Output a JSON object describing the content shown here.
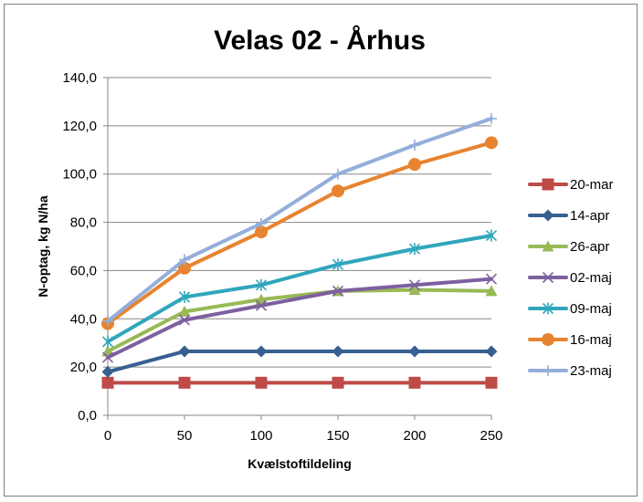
{
  "chart_data": {
    "type": "line",
    "title": "Velas 02 - Århus",
    "xlabel": "Kvælstoftildeling",
    "ylabel": "N-optag, kg N/ha",
    "x": [
      0,
      50,
      100,
      150,
      200,
      250
    ],
    "x_tick_labels": [
      "0",
      "50",
      "100",
      "150",
      "200",
      "250"
    ],
    "ylim": [
      0,
      140
    ],
    "y_ticks": [
      0,
      20,
      40,
      60,
      80,
      100,
      120,
      140
    ],
    "y_tick_labels": [
      "0,0",
      "20,0",
      "40,0",
      "60,0",
      "80,0",
      "100,0",
      "120,0",
      "140,0"
    ],
    "grid": "horizontal",
    "legend_position": "right",
    "series": [
      {
        "name": "20-mar",
        "values": [
          13.5,
          13.5,
          13.5,
          13.5,
          13.5,
          13.5
        ],
        "color": "#be4b48",
        "marker": "square"
      },
      {
        "name": "14-apr",
        "values": [
          18,
          26.5,
          26.5,
          26.5,
          26.5,
          26.5
        ],
        "color": "#376092",
        "marker": "diamond"
      },
      {
        "name": "26-apr",
        "values": [
          26.5,
          43,
          48,
          51.5,
          52,
          51.5
        ],
        "color": "#98b954",
        "marker": "triangle"
      },
      {
        "name": "02-maj",
        "values": [
          24,
          39.5,
          45.5,
          51.5,
          54,
          56.5
        ],
        "color": "#7d60a0",
        "marker": "x"
      },
      {
        "name": "09-maj",
        "values": [
          30.5,
          49,
          54,
          62.5,
          69,
          74.5
        ],
        "color": "#31a6bc",
        "marker": "asterisk"
      },
      {
        "name": "16-maj",
        "values": [
          38,
          61,
          76,
          93,
          104,
          113
        ],
        "color": "#e8832f",
        "marker": "circle"
      },
      {
        "name": "23-maj",
        "values": [
          39,
          64.5,
          79.5,
          100,
          112,
          123
        ],
        "color": "#94aedb",
        "marker": "plus"
      }
    ]
  }
}
